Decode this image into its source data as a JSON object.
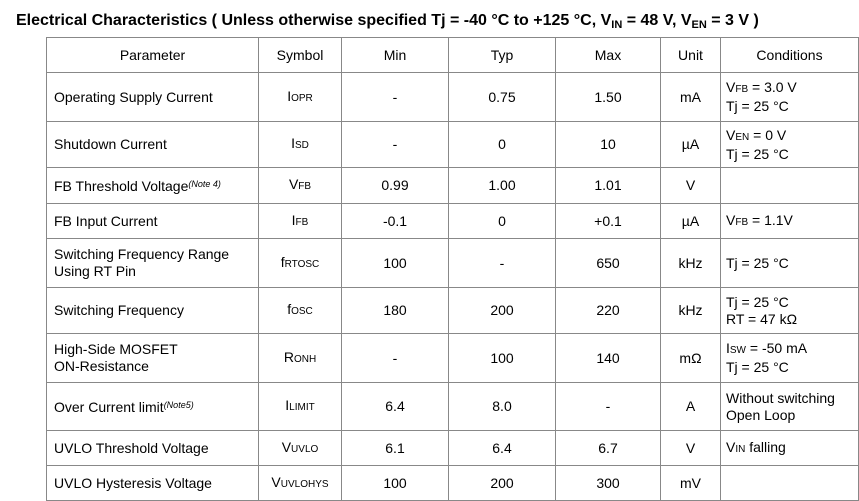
{
  "title": [
    "Electrical Characteristics ( Unless otherwise specified Tj = -40 °C to +125 °C, V",
    "IN",
    " = 48 V, V",
    "EN",
    " = 3 V )"
  ],
  "table": {
    "header": [
      "Parameter",
      "Symbol",
      "Min",
      "Typ",
      "Max",
      "Unit",
      "Conditions"
    ],
    "rows": [
      {
        "parameter": [
          "Operating Supply Current"
        ],
        "symbol": [
          "I",
          "OPR"
        ],
        "min": "-",
        "typ": "0.75",
        "max": "1.50",
        "unit": "mA",
        "conditions": [
          [
            "V",
            "FB",
            " = 3.0 V"
          ],
          [
            "Tj = 25 °C"
          ]
        ]
      },
      {
        "parameter": [
          "Shutdown Current"
        ],
        "symbol": [
          "I",
          "SD"
        ],
        "min": "-",
        "typ": "0",
        "max": "10",
        "unit": "µA",
        "conditions": [
          [
            "V",
            "EN",
            " = 0 V"
          ],
          [
            "Tj = 25 °C"
          ]
        ]
      },
      {
        "parameter": [
          "FB Threshold Voltage"
        ],
        "note": "(Note 4)",
        "symbol": [
          "V",
          "FB"
        ],
        "min": "0.99",
        "typ": "1.00",
        "max": "1.01",
        "unit": "V",
        "conditions": []
      },
      {
        "parameter": [
          "FB Input Current"
        ],
        "symbol": [
          "I",
          "FB"
        ],
        "min": "-0.1",
        "typ": "0",
        "max": "+0.1",
        "unit": "µA",
        "conditions": [
          [
            "V",
            "FB",
            " = 1.1V"
          ]
        ]
      },
      {
        "parameter": [
          "Switching Frequency Range",
          "Using RT Pin"
        ],
        "symbol": [
          "f",
          "RTOSC"
        ],
        "min": "100",
        "typ": "-",
        "max": "650",
        "unit": "kHz",
        "conditions": [
          [
            "Tj = 25 °C"
          ]
        ]
      },
      {
        "parameter": [
          "Switching Frequency"
        ],
        "symbol": [
          "f",
          "OSC"
        ],
        "min": "180",
        "typ": "200",
        "max": "220",
        "unit": "kHz",
        "conditions": [
          [
            "Tj = 25 °C"
          ],
          [
            "RT = 47 kΩ"
          ]
        ]
      },
      {
        "parameter": [
          "High-Side MOSFET",
          "ON-Resistance"
        ],
        "symbol": [
          "R",
          "ONH"
        ],
        "min": "-",
        "typ": "100",
        "max": "140",
        "unit": "mΩ",
        "conditions": [
          [
            "I",
            "SW",
            " = -50 mA"
          ],
          [
            "Tj = 25 °C"
          ]
        ]
      },
      {
        "parameter": [
          "Over Current limit"
        ],
        "note": "(Note5)",
        "symbol": [
          "I",
          "LIMIT"
        ],
        "min": "6.4",
        "typ": "8.0",
        "max": "-",
        "unit": "A",
        "conditions": [
          [
            "Without switching"
          ],
          [
            "Open Loop"
          ]
        ]
      },
      {
        "parameter": [
          "UVLO Threshold Voltage"
        ],
        "symbol": [
          "V",
          "UVLO"
        ],
        "min": "6.1",
        "typ": "6.4",
        "max": "6.7",
        "unit": "V",
        "conditions": [
          [
            "V",
            "IN",
            " falling"
          ]
        ]
      },
      {
        "parameter": [
          "UVLO Hysteresis Voltage"
        ],
        "symbol": [
          "V",
          "UVLOHYS"
        ],
        "min": "100",
        "typ": "200",
        "max": "300",
        "unit": "mV",
        "conditions": []
      }
    ]
  }
}
